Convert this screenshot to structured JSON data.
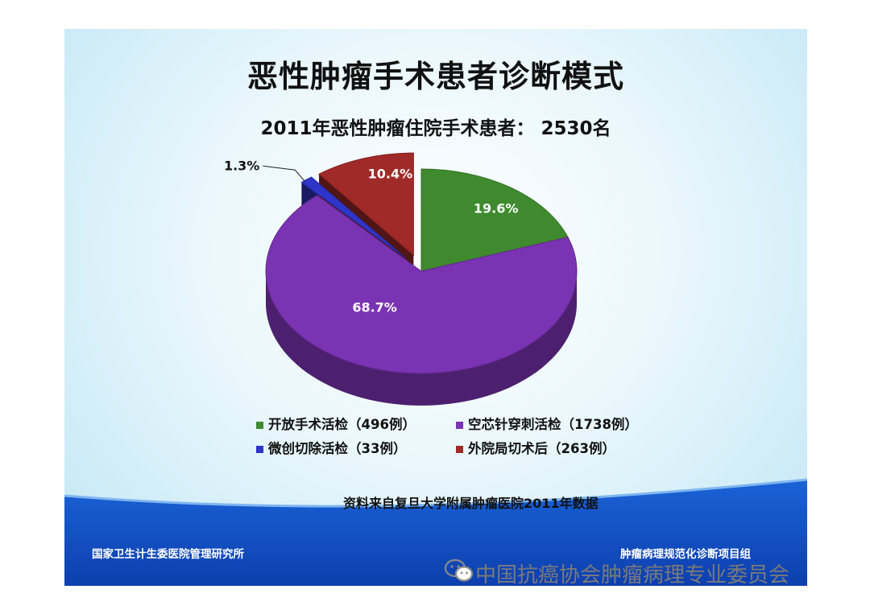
{
  "slide": {
    "title": "恶性肿瘤手术患者诊断模式",
    "subtitle": "2011年恶性肿瘤住院手术患者： 2530名",
    "source": "资料来自复旦大学附属肿瘤医院2011年数据",
    "footer_left": "国家卫生计生委医院管理研究所",
    "footer_right": "肿瘤病理规范化诊断项目组"
  },
  "watermark": {
    "icon": "wechat-icon",
    "text": "中国抗癌协会肿瘤病理专业委员会"
  },
  "chart_data": {
    "type": "pie",
    "title": "2011年恶性肿瘤住院手术患者： 2530名",
    "exploded_3d": true,
    "legend_position": "bottom",
    "slices": [
      {
        "legend": "开放手术活检（496例）",
        "label": "19.6%",
        "percent": 19.6,
        "count": 496,
        "color": "#3f8a2e"
      },
      {
        "legend": "空芯针穿刺活检（1738例）",
        "label": "68.7%",
        "percent": 68.7,
        "count": 1738,
        "color": "#7a33b3"
      },
      {
        "legend": "微创切除活检（33例）",
        "label": "1.3%",
        "percent": 1.3,
        "count": 33,
        "color": "#2f35c8"
      },
      {
        "legend": "外院局切术后（263例）",
        "label": "10.4%",
        "percent": 10.4,
        "count": 263,
        "color": "#a02a28"
      }
    ]
  }
}
